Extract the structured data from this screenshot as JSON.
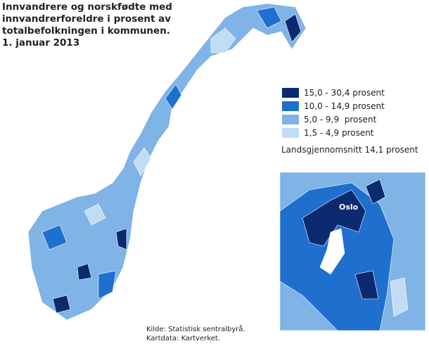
{
  "title": [
    "Innvandrere og norskfødte med",
    "innvandrerforeldre i prosent av",
    "totalbefolkningen i kommunen.",
    "1. januar 2013"
  ],
  "legend": {
    "items": [
      {
        "label": "15,0 - 30,4 prosent",
        "color": "#0b2a6f"
      },
      {
        "label": "10,0 - 14,9 prosent",
        "color": "#1f6fcf"
      },
      {
        "label": "5,0 - 9,9  prosent",
        "color": "#80b3e6"
      },
      {
        "label": "1,5 - 4,9 prosent",
        "color": "#c2dcf4"
      }
    ]
  },
  "average": "Landsgjennomsnitt 14,1 prosent",
  "inset_label": "Oslo",
  "source": [
    "Kilde: Statistisk sentralbyrå.",
    "Kartdata: Kartverket."
  ]
}
